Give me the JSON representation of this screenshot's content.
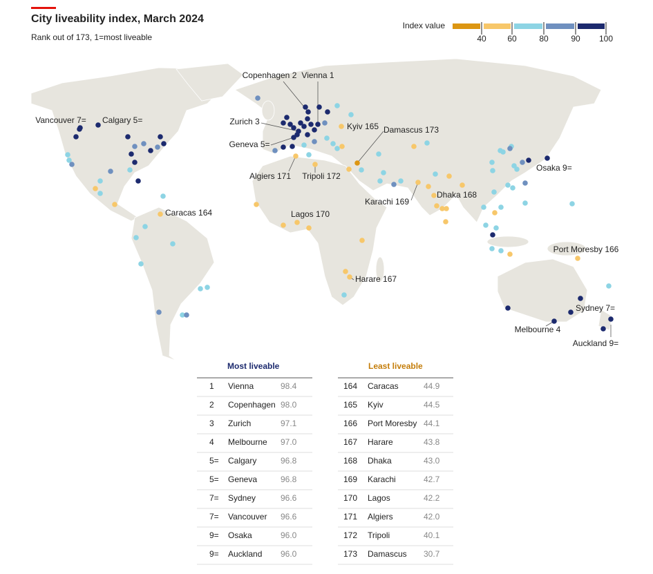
{
  "header": {
    "title": "City liveability index, March 2024",
    "subtitle": "Rank out of 173, 1=most liveable"
  },
  "legend": {
    "title": "Index value",
    "ticks": [
      40,
      60,
      80,
      90,
      100
    ],
    "colors": [
      "#dc9612",
      "#f7c76a",
      "#8dd4e4",
      "#6f90bf",
      "#1c2a6e"
    ]
  },
  "map_labels": [
    "Vienna 1",
    "Copenhagen 2",
    "Zurich 3",
    "Melbourne 4",
    "Calgary 5=",
    "Geneva 5=",
    "Sydney 7=",
    "Vancouver 7=",
    "Osaka 9=",
    "Auckland 9=",
    "Caracas 164",
    "Kyiv 165",
    "Port Moresby 166",
    "Harare 167",
    "Dhaka 168",
    "Karachi 169",
    "Lagos 170",
    "Algiers 171",
    "Tripoli 172",
    "Damascus 173"
  ],
  "tables": [
    {
      "title": "Most liveable",
      "rows": [
        [
          "1",
          "Vienna",
          "98.4"
        ],
        [
          "2",
          "Copenhagen",
          "98.0"
        ],
        [
          "3",
          "Zurich",
          "97.1"
        ],
        [
          "4",
          "Melbourne",
          "97.0"
        ],
        [
          "5=",
          "Calgary",
          "96.8"
        ],
        [
          "5=",
          "Geneva",
          "96.8"
        ],
        [
          "7=",
          "Sydney",
          "96.6"
        ],
        [
          "7=",
          "Vancouver",
          "96.6"
        ],
        [
          "9=",
          "Osaka",
          "96.0"
        ],
        [
          "9=",
          "Auckland",
          "96.0"
        ]
      ]
    },
    {
      "title": "Least liveable",
      "rows": [
        [
          "164",
          "Caracas",
          "44.9"
        ],
        [
          "165",
          "Kyiv",
          "44.5"
        ],
        [
          "166",
          "Port Moresby",
          "44.1"
        ],
        [
          "167",
          "Harare",
          "43.8"
        ],
        [
          "168",
          "Dhaka",
          "43.0"
        ],
        [
          "169",
          "Karachi",
          "42.7"
        ],
        [
          "170",
          "Lagos",
          "42.2"
        ],
        [
          "171",
          "Algiers",
          "42.0"
        ],
        [
          "172",
          "Tripoli",
          "40.1"
        ],
        [
          "173",
          "Damascus",
          "30.7"
        ]
      ]
    }
  ]
}
